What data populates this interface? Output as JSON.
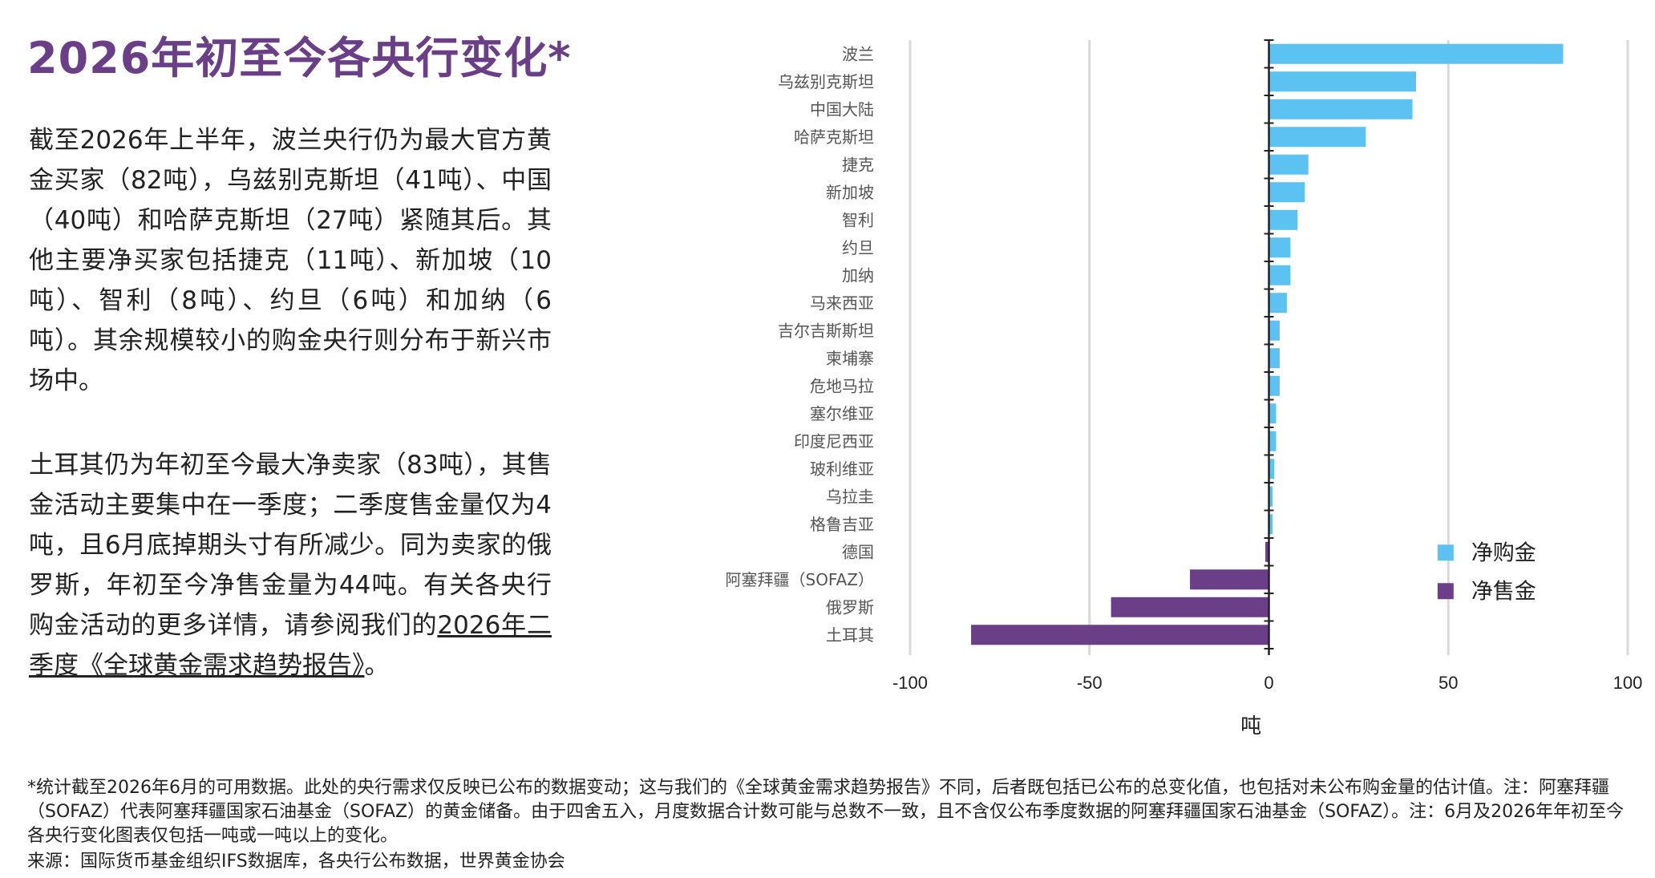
{
  "title": "2026年初至今各央行变化*",
  "paragraph1": "截至2026年上半年，波兰央行仍为最大官方黄金买家（82吨），乌兹别克斯坦（41吨）、中国（40吨）和哈萨克斯坦（27吨）紧随其后。其他主要净买家包括捷克（11吨）、新加坡（10吨）、智利（8吨）、约旦（6吨）和加纳（6吨）。其余规模较小的购金央行则分布于新兴市场中。",
  "paragraph2_text": "土耳其仍为年初至今最大净卖家（83吨），其售金活动主要集中在一季度；二季度售金量仅为4吨，且6月底掉期头寸有所减少。同为卖家的俄罗斯，年初至今净售金量为44吨。有关各央行购金活动的更多详情，请参阅我们的",
  "paragraph2_link": "2026年二季度《全球黄金需求趋势报告》",
  "paragraph2_end": "。",
  "footnote": "*统计截至2026年6月的可用数据。此处的央行需求仅反映已公布的数据变动；这与我们的《全球黄金需求趋势报告》不同，后者既包括已公布的总变化值，也包括对未公布购金量的估计值。注：阿塞拜疆（SOFAZ）代表阿塞拜疆国家石油基金（SOFAZ）的黄金储备。由于四舍五入，月度数据合计数可能与总数不一致，且不含仅公布季度数据的阿塞拜疆国家石油基金（SOFAZ）。注：6月及2026年年初至今各央行变化图表仅包括一吨或一吨以上的变化。",
  "source": "来源：国际货币基金组织IFS数据库，各央行公布数据，世界黄金协会",
  "colors": {
    "title": "#6b3f87",
    "buy": "#5bc2f2",
    "sell": "#6b3f87",
    "grid": "#d9d9d9",
    "axis": "#222222",
    "label": "#555555"
  },
  "chart_data": {
    "type": "bar",
    "orientation": "horizontal",
    "xlabel": "吨",
    "xlim": [
      -100,
      100
    ],
    "xticks": [
      -100,
      -50,
      0,
      50,
      100
    ],
    "grid": true,
    "legend_position": "bottom-right",
    "categories": [
      "波兰",
      "乌兹别克斯坦",
      "中国大陆",
      "哈萨克斯坦",
      "捷克",
      "新加坡",
      "智利",
      "约旦",
      "加纳",
      "马来西亚",
      "吉尔吉斯斯坦",
      "柬埔寨",
      "危地马拉",
      "塞尔维亚",
      "印度尼西亚",
      "玻利维亚",
      "乌拉圭",
      "格鲁吉亚",
      "德国",
      "阿塞拜疆（SOFAZ）",
      "俄罗斯",
      "土耳其"
    ],
    "values": [
      82,
      41,
      40,
      27,
      11,
      10,
      8,
      6,
      6,
      5,
      3,
      3,
      3,
      2,
      2,
      1.5,
      1,
      1,
      -1,
      -22,
      -44,
      -83
    ],
    "series": [
      {
        "name": "净购金",
        "color": "#5bc2f2"
      },
      {
        "name": "净售金",
        "color": "#6b3f87"
      }
    ]
  }
}
